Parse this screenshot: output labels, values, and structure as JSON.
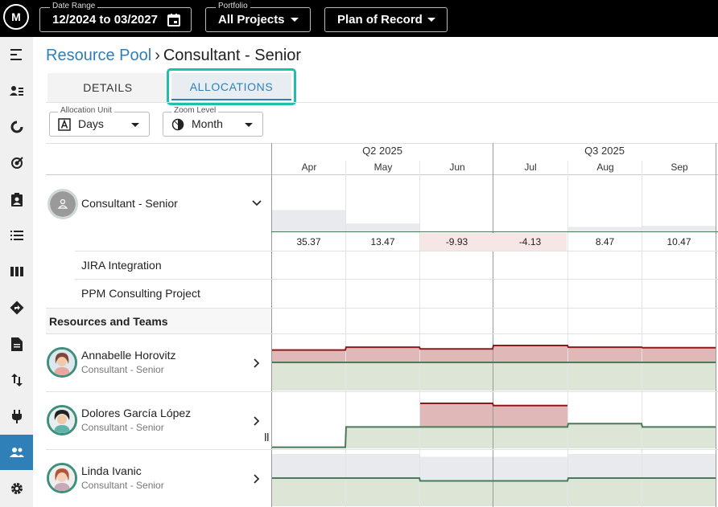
{
  "topbar": {
    "logo": "M",
    "date_range": {
      "label": "Date Range",
      "value": "12/2024 to 03/2027"
    },
    "portfolio": {
      "label": "Portfolio",
      "value": "All Projects"
    },
    "plan": {
      "value": "Plan of Record"
    }
  },
  "sidebar": {
    "icons": [
      "menu-collapse-icon",
      "people-list-icon",
      "pie-chart-icon",
      "target-icon",
      "clipboard-user-icon",
      "list-icon",
      "columns-icon",
      "directions-icon",
      "document-icon",
      "swap-vertical-icon",
      "plug-icon",
      "team-icon",
      "settings-icon"
    ],
    "active": "team-icon"
  },
  "breadcrumb": {
    "parent": "Resource Pool",
    "separator": "›",
    "current": "Consultant - Senior"
  },
  "tabs": {
    "details": "DETAILS",
    "allocations": "ALLOCATIONS",
    "active": "allocations"
  },
  "controls": {
    "allocation_unit": {
      "label": "Allocation Unit",
      "value": "Days"
    },
    "zoom_level": {
      "label": "Zoom Level",
      "value": "Month"
    }
  },
  "timeline": {
    "quarters": [
      {
        "label": "Q2 2025"
      },
      {
        "label": "Q3 2025"
      }
    ],
    "months": [
      "Apr",
      "May",
      "Jun",
      "Jul",
      "Aug",
      "Sep"
    ]
  },
  "role_row": {
    "name": "Consultant - Senior",
    "values": [
      "35.37",
      "13.47",
      "-9.93",
      "-4.13",
      "8.47",
      "10.47"
    ],
    "negative_flags": [
      false,
      false,
      true,
      true,
      false,
      false
    ],
    "capacity_fill_levels": [
      0.38,
      0.14,
      0.0,
      0.0,
      0.08,
      0.1
    ]
  },
  "projects": [
    "JIRA Integration",
    "PPM Consulting Project"
  ],
  "section_title": "Resources and Teams",
  "resources": [
    {
      "name": "Annabelle Horovitz",
      "role": "Consultant - Senior",
      "capacity": [
        0.5,
        0.5,
        0.5,
        0.5,
        0.5,
        0.5
      ],
      "allocation": [
        0.72,
        0.77,
        0.74,
        0.8,
        0.77,
        0.76
      ]
    },
    {
      "name": "Dolores García López",
      "role": "Consultant - Senior",
      "capacity": [
        0.02,
        0.38,
        0.38,
        0.38,
        0.44,
        0.38
      ],
      "allocation": [
        0.0,
        0.0,
        0.8,
        0.76,
        0.44,
        0.38
      ]
    },
    {
      "name": "Linda Ivanic",
      "role": "Consultant - Senior",
      "capacity": [
        0.5,
        0.5,
        0.45,
        0.45,
        0.5,
        0.5
      ],
      "allocation": [
        0.0,
        0.0,
        0.0,
        0.0,
        0.0,
        0.0
      ]
    }
  ],
  "colors": {
    "accent": "#2f7fb8",
    "highlight_border": "#1fbfa9",
    "over_allocation": "#e0b8b8",
    "over_line": "#8b1a1a",
    "under_fill": "#dde5d6",
    "capacity_line": "#4a7a5a",
    "unassigned": "#e8eaee"
  }
}
